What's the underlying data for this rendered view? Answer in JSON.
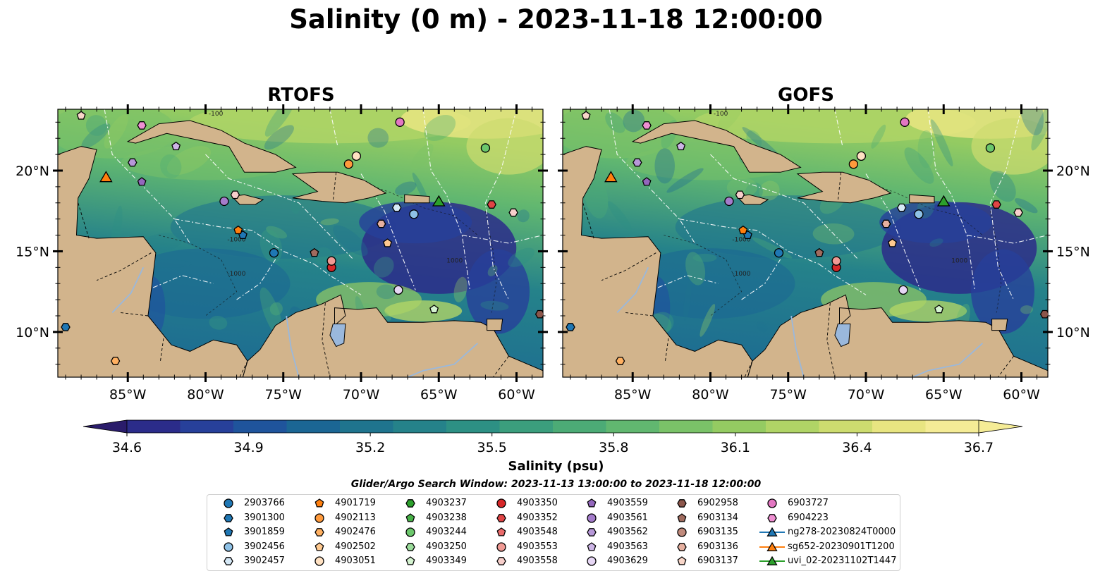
{
  "title": "Salinity (0 m) - 2023-11-18 12:00:00",
  "panels": [
    {
      "title": "RTOFS",
      "variant": "rtofs"
    },
    {
      "title": "GOFS",
      "variant": "gofs"
    }
  ],
  "map": {
    "lon_range": [
      -89.5,
      -58.3
    ],
    "lat_range": [
      7.2,
      23.8
    ],
    "lon_ticks": [
      -85,
      -80,
      -75,
      -70,
      -65,
      -60
    ],
    "lon_tick_labels": [
      "85°W",
      "80°W",
      "75°W",
      "70°W",
      "65°W",
      "60°W"
    ],
    "lat_ticks": [
      10,
      15,
      20
    ],
    "lat_tick_labels": [
      "10°N",
      "15°N",
      "20°N"
    ],
    "land_color": "#d2b48c",
    "ocean_fresh_color": "#2a1a6b",
    "ocean_base_color": "#2b7a8c",
    "river_color": "#9ab8dc",
    "contour_labels": [
      "-100",
      "-1000",
      "-1000",
      "1000"
    ]
  },
  "colorbar": {
    "label": "Salinity (psu)",
    "min": 34.6,
    "max": 36.7,
    "ticks": [
      "34.6",
      "34.9",
      "35.2",
      "35.5",
      "35.8",
      "36.1",
      "36.4",
      "36.7"
    ],
    "colors": [
      "#2a1c6b",
      "#2b2c8a",
      "#27409a",
      "#1f549c",
      "#1b6694",
      "#1f748e",
      "#25828a",
      "#2d9084",
      "#3b9e7d",
      "#4cab76",
      "#61b770",
      "#7ac268",
      "#94cb62",
      "#b0d466",
      "#cddc6f",
      "#e8e581",
      "#f5ec96"
    ]
  },
  "search_window": "Glider/Argo Search Window: 2023-11-13 13:00:00 to 2023-11-18 12:00:00",
  "legend": [
    {
      "label": "2903766",
      "marker": "circle",
      "color": "#1f77b4"
    },
    {
      "label": "3901300",
      "marker": "hexagon",
      "color": "#1f77b4"
    },
    {
      "label": "3901859",
      "marker": "pentagon",
      "color": "#1f77b4"
    },
    {
      "label": "3902456",
      "marker": "circle",
      "color": "#8ec1e6"
    },
    {
      "label": "3902457",
      "marker": "hexagon",
      "color": "#d6e9f7"
    },
    {
      "label": "4901719",
      "marker": "pentagon",
      "color": "#ff7f0e"
    },
    {
      "label": "4902113",
      "marker": "circle",
      "color": "#ff9a3c"
    },
    {
      "label": "4902476",
      "marker": "hexagon",
      "color": "#ffb061"
    },
    {
      "label": "4902502",
      "marker": "pentagon",
      "color": "#ffc98f"
    },
    {
      "label": "4903051",
      "marker": "circle",
      "color": "#ffe1c2"
    },
    {
      "label": "4903237",
      "marker": "hexagon",
      "color": "#2ca02c"
    },
    {
      "label": "4903238",
      "marker": "pentagon",
      "color": "#47b147"
    },
    {
      "label": "4903244",
      "marker": "circle",
      "color": "#6cc76c"
    },
    {
      "label": "4903250",
      "marker": "hexagon",
      "color": "#9bdc9b"
    },
    {
      "label": "4903349",
      "marker": "pentagon",
      "color": "#d4f3d0"
    },
    {
      "label": "4903350",
      "marker": "circle",
      "color": "#d62728"
    },
    {
      "label": "4903352",
      "marker": "hexagon",
      "color": "#e04445"
    },
    {
      "label": "4903548",
      "marker": "pentagon",
      "color": "#ea6b6b"
    },
    {
      "label": "4903553",
      "marker": "circle",
      "color": "#f09a94"
    },
    {
      "label": "4903558",
      "marker": "hexagon",
      "color": "#f7cfcb"
    },
    {
      "label": "4903559",
      "marker": "pentagon",
      "color": "#9467bd"
    },
    {
      "label": "4903561",
      "marker": "circle",
      "color": "#a47ccb"
    },
    {
      "label": "4903562",
      "marker": "hexagon",
      "color": "#b798d8"
    },
    {
      "label": "4903563",
      "marker": "pentagon",
      "color": "#cdb5e6"
    },
    {
      "label": "4903629",
      "marker": "circle",
      "color": "#e6d6f4"
    },
    {
      "label": "6902958",
      "marker": "hexagon",
      "color": "#8c564b"
    },
    {
      "label": "6903134",
      "marker": "pentagon",
      "color": "#a06b5e"
    },
    {
      "label": "6903135",
      "marker": "circle",
      "color": "#c08a7c"
    },
    {
      "label": "6903136",
      "marker": "hexagon",
      "color": "#e6b0a0"
    },
    {
      "label": "6903137",
      "marker": "pentagon",
      "color": "#f8d6c9"
    },
    {
      "label": "6903727",
      "marker": "circle",
      "color": "#e377c2"
    },
    {
      "label": "6904223",
      "marker": "hexagon",
      "color": "#ef8fd2"
    },
    {
      "label": "ng278-20230824T0000",
      "marker": "triangle",
      "color": "#1f77b4",
      "line": true
    },
    {
      "label": "sg652-20230901T1200",
      "marker": "triangle",
      "color": "#ff7f0e",
      "line": true
    },
    {
      "label": "uvi_02-20231102T1447",
      "marker": "triangle",
      "color": "#2ca02c",
      "line": true
    }
  ],
  "floats": [
    {
      "id": "2903766",
      "lon": -75.6,
      "lat": 14.9
    },
    {
      "id": "3901300",
      "lon": -89.0,
      "lat": 10.3
    },
    {
      "id": "3901859",
      "lon": -77.6,
      "lat": 16.0
    },
    {
      "id": "3902456",
      "lon": -66.6,
      "lat": 17.3
    },
    {
      "id": "3902457",
      "lon": -67.7,
      "lat": 17.7
    },
    {
      "id": "4901719",
      "lon": -77.9,
      "lat": 16.3
    },
    {
      "id": "4902113",
      "lon": -70.8,
      "lat": 20.4
    },
    {
      "id": "4902476",
      "lon": -85.8,
      "lat": 8.2
    },
    {
      "id": "4902502",
      "lon": -68.3,
      "lat": 15.5
    },
    {
      "id": "4903051",
      "lon": -70.3,
      "lat": 20.9
    },
    {
      "id": "4903244",
      "lon": -62.0,
      "lat": 21.4
    },
    {
      "id": "4903349",
      "lon": -65.3,
      "lat": 11.4
    },
    {
      "id": "4903350",
      "lon": -71.9,
      "lat": 14.0
    },
    {
      "id": "4903352",
      "lon": -61.6,
      "lat": 17.9
    },
    {
      "id": "4903553",
      "lon": -71.9,
      "lat": 14.4
    },
    {
      "id": "4903558",
      "lon": -60.2,
      "lat": 17.4
    },
    {
      "id": "4903559",
      "lon": -84.1,
      "lat": 19.3
    },
    {
      "id": "4903561",
      "lon": -78.8,
      "lat": 18.1
    },
    {
      "id": "4903562",
      "lon": -84.7,
      "lat": 20.5
    },
    {
      "id": "4903563",
      "lon": -81.9,
      "lat": 21.5
    },
    {
      "id": "4903629",
      "lon": -67.6,
      "lat": 12.6
    },
    {
      "id": "6902958",
      "lon": -58.5,
      "lat": 11.1
    },
    {
      "id": "6903134",
      "lon": -73.0,
      "lat": 14.9
    },
    {
      "id": "6903136",
      "lon": -68.7,
      "lat": 16.7
    },
    {
      "id": "6903137",
      "lon": -88.0,
      "lat": 23.4
    },
    {
      "id": "6903727",
      "lon": -67.5,
      "lat": 23.0
    },
    {
      "id": "6904223",
      "lon": -84.1,
      "lat": 22.8
    },
    {
      "id": "hex-extra-1",
      "lon": -78.1,
      "lat": 18.5
    }
  ],
  "gliders": [
    {
      "id": "sg652-20230901T1200",
      "lon": -86.4,
      "lat": 19.6,
      "color": "#ff7f0e"
    },
    {
      "id": "uvi_02-20231102T1447",
      "lon": -65.0,
      "lat": 18.1,
      "color": "#2ca02c"
    }
  ]
}
